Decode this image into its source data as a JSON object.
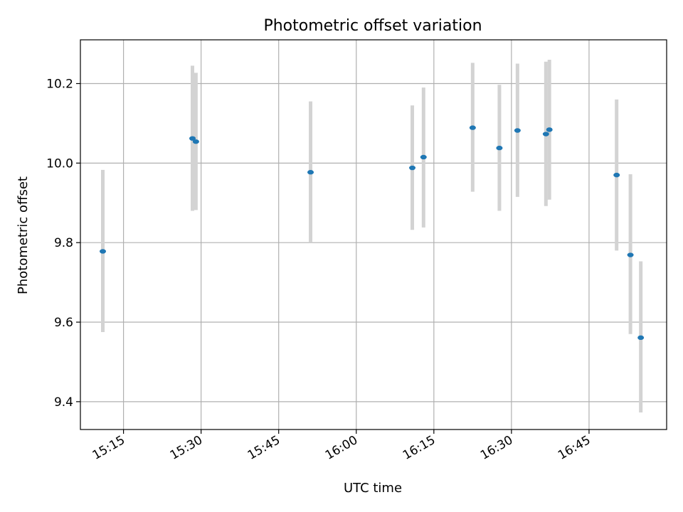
{
  "chart_data": {
    "type": "scatter",
    "title": "Photometric offset variation",
    "xlabel": "UTC time",
    "ylabel": "Photometric offset",
    "x_axis_type": "time",
    "xlim": [
      "15:06:40",
      "17:00:00"
    ],
    "ylim": [
      9.33,
      10.31
    ],
    "x_ticks": [
      "15:15",
      "15:30",
      "15:45",
      "16:00",
      "16:15",
      "16:30",
      "16:45"
    ],
    "y_ticks": [
      9.4,
      9.6,
      9.8,
      10.0,
      10.2
    ],
    "y_tick_labels": [
      "9.4",
      "9.6",
      "9.8",
      "10.0",
      "10.2"
    ],
    "grid": true,
    "legend": "none",
    "marker_color": "#1f77b4",
    "errorbar_color": "#d3d3d3",
    "points": [
      {
        "t": "15:11:00",
        "y": 9.778,
        "ylow": 9.575,
        "yhigh": 9.983
      },
      {
        "t": "15:28:20",
        "y": 10.062,
        "ylow": 9.88,
        "yhigh": 10.245
      },
      {
        "t": "15:29:00",
        "y": 10.054,
        "ylow": 9.882,
        "yhigh": 10.227
      },
      {
        "t": "15:51:10",
        "y": 9.977,
        "ylow": 9.8,
        "yhigh": 10.155
      },
      {
        "t": "16:10:50",
        "y": 9.988,
        "ylow": 9.832,
        "yhigh": 10.145
      },
      {
        "t": "16:13:00",
        "y": 10.015,
        "ylow": 9.838,
        "yhigh": 10.19
      },
      {
        "t": "16:22:30",
        "y": 10.089,
        "ylow": 9.928,
        "yhigh": 10.252
      },
      {
        "t": "16:27:40",
        "y": 10.038,
        "ylow": 9.88,
        "yhigh": 10.197
      },
      {
        "t": "16:31:10",
        "y": 10.082,
        "ylow": 9.915,
        "yhigh": 10.25
      },
      {
        "t": "16:36:40",
        "y": 10.073,
        "ylow": 9.892,
        "yhigh": 10.255
      },
      {
        "t": "16:37:20",
        "y": 10.084,
        "ylow": 9.908,
        "yhigh": 10.26
      },
      {
        "t": "16:50:20",
        "y": 9.97,
        "ylow": 9.78,
        "yhigh": 10.16
      },
      {
        "t": "16:53:00",
        "y": 9.769,
        "ylow": 9.57,
        "yhigh": 9.972
      },
      {
        "t": "16:55:00",
        "y": 9.561,
        "ylow": 9.373,
        "yhigh": 9.753
      }
    ]
  }
}
